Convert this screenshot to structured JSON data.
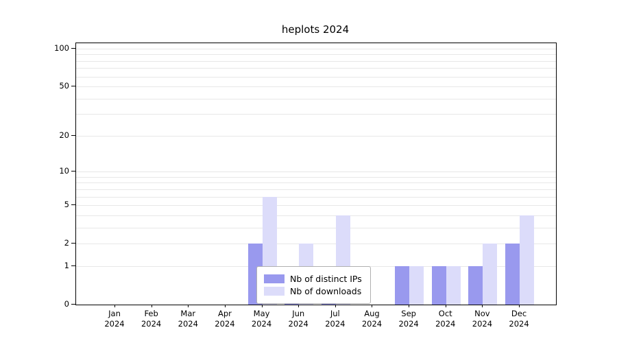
{
  "chart_data": {
    "type": "bar",
    "title": "heplots 2024",
    "x_months": [
      "Jan",
      "Feb",
      "Mar",
      "Apr",
      "May",
      "Jun",
      "Jul",
      "Aug",
      "Sep",
      "Oct",
      "Nov",
      "Dec"
    ],
    "x_year": "2024",
    "series": [
      {
        "name": "Nb of distinct IPs",
        "color": "#9999ee",
        "values": [
          0,
          0,
          0,
          0,
          2,
          1,
          1,
          0,
          1,
          1,
          1,
          2
        ]
      },
      {
        "name": "Nb of downloads",
        "color": "#dcdcfa",
        "values": [
          0,
          0,
          0,
          0,
          6,
          2,
          4,
          0,
          1,
          1,
          2,
          4
        ]
      }
    ],
    "yticks": [
      0,
      1,
      2,
      5,
      10,
      20,
      50,
      100
    ],
    "minor_gridlines": [
      1,
      2,
      3,
      4,
      5,
      6,
      7,
      8,
      9,
      10,
      20,
      30,
      40,
      50,
      60,
      70,
      80,
      90,
      100
    ],
    "scale": "log1p",
    "ylim": [
      0,
      100
    ],
    "grid": "on",
    "grid_color": "#e7e7e7",
    "axis_color": "#000000",
    "legend_position": "inside-bottom-center"
  }
}
